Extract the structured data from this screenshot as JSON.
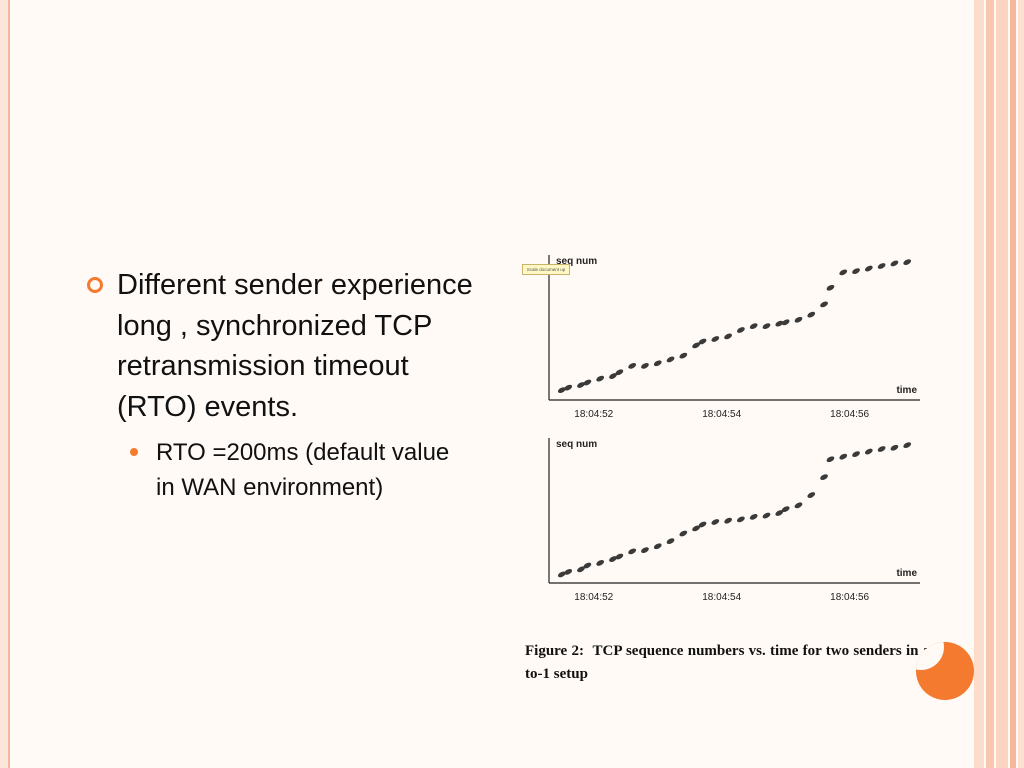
{
  "slide": {
    "bullet_main": "Different sender experience long , synchronized TCP retransmission timeout (RTO) events.",
    "bullet_sub": "RTO =200ms (default value in WAN environment)",
    "tooltip": "Scale document up",
    "caption_label": "Figure 2:",
    "caption_text": "TCP sequence numbers vs.  time for two senders in a 5-to-1 setup"
  },
  "colors": {
    "accent": "#f37a2e",
    "stripe_light": "#fcd5c2",
    "stripe_mid": "#f7b79a",
    "marker": "#3a3a3a"
  },
  "chart_data": [
    {
      "type": "scatter",
      "ylabel": "seq num",
      "xlabel": "time",
      "tick_labels": [
        "18:04:52",
        "18:04:54",
        "18:04:56"
      ],
      "x_ticks": [
        52,
        54,
        56
      ],
      "xlim": [
        51.3,
        57.1
      ],
      "ylim": [
        0,
        100
      ],
      "grid": false,
      "legend": "none",
      "series": [
        {
          "x": [
            51.5,
            51.6,
            51.8,
            51.9,
            52.1,
            52.3,
            52.4,
            52.6,
            52.8,
            53.0,
            53.2,
            53.4,
            53.6,
            53.7,
            53.9,
            54.1,
            54.3,
            54.5,
            54.7,
            54.9,
            55.0,
            55.2,
            55.4,
            55.6,
            55.7,
            55.9,
            56.1,
            56.3,
            56.5,
            56.7,
            56.9
          ],
          "y": [
            3,
            5,
            7,
            9,
            12,
            14,
            17,
            22,
            22,
            24,
            27,
            30,
            38,
            41,
            43,
            45,
            50,
            53,
            53,
            55,
            56,
            58,
            62,
            70,
            83,
            95,
            96,
            98,
            100,
            102,
            103
          ]
        }
      ]
    },
    {
      "type": "scatter",
      "ylabel": "seq num",
      "xlabel": "time",
      "tick_labels": [
        "18:04:52",
        "18:04:54",
        "18:04:56"
      ],
      "x_ticks": [
        52,
        54,
        56
      ],
      "xlim": [
        51.3,
        57.1
      ],
      "ylim": [
        0,
        100
      ],
      "grid": false,
      "legend": "none",
      "series": [
        {
          "x": [
            51.5,
            51.6,
            51.8,
            51.9,
            52.1,
            52.3,
            52.4,
            52.6,
            52.8,
            53.0,
            53.2,
            53.4,
            53.6,
            53.7,
            53.9,
            54.1,
            54.3,
            54.5,
            54.7,
            54.9,
            55.0,
            55.2,
            55.4,
            55.6,
            55.7,
            55.9,
            56.1,
            56.3,
            56.5,
            56.7,
            56.9
          ],
          "y": [
            2,
            4,
            6,
            9,
            11,
            14,
            16,
            20,
            21,
            24,
            28,
            34,
            38,
            41,
            43,
            44,
            45,
            47,
            48,
            50,
            53,
            56,
            64,
            78,
            92,
            94,
            96,
            98,
            100,
            101,
            103
          ]
        }
      ]
    }
  ]
}
